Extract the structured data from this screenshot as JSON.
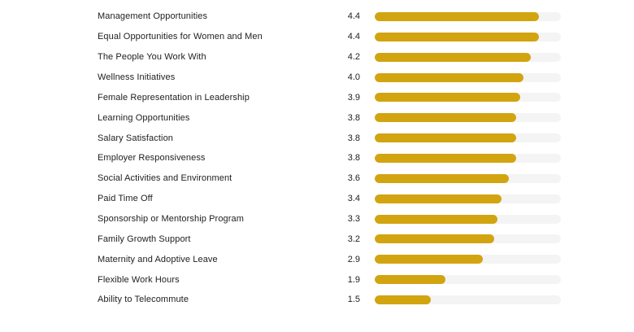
{
  "chart_data": {
    "type": "bar",
    "orientation": "horizontal",
    "title": "",
    "xlabel": "",
    "ylabel": "",
    "xlim": [
      0,
      5
    ],
    "grid": false,
    "legend": false,
    "categories": [
      "Management Opportunities",
      "Equal Opportunities for Women and Men",
      "The People You Work With",
      "Wellness Initiatives",
      "Female Representation in Leadership",
      "Learning Opportunities",
      "Salary Satisfaction",
      "Employer Responsiveness",
      "Social Activities and Environment",
      "Paid Time Off",
      "Sponsorship or Mentorship Program",
      "Family Growth Support",
      "Maternity and Adoptive Leave",
      "Flexible Work Hours",
      "Ability to Telecommute"
    ],
    "values": [
      4.4,
      4.4,
      4.2,
      4.0,
      3.9,
      3.8,
      3.8,
      3.8,
      3.6,
      3.4,
      3.3,
      3.2,
      2.9,
      1.9,
      1.5
    ],
    "value_labels": [
      "4.4",
      "4.4",
      "4.2",
      "4.0",
      "3.9",
      "3.8",
      "3.8",
      "3.8",
      "3.6",
      "3.4",
      "3.3",
      "3.2",
      "2.9",
      "1.9",
      "1.5"
    ],
    "bar_color": "#D2A410",
    "track_color": "#F4F4F5",
    "text_color": "#212121"
  }
}
